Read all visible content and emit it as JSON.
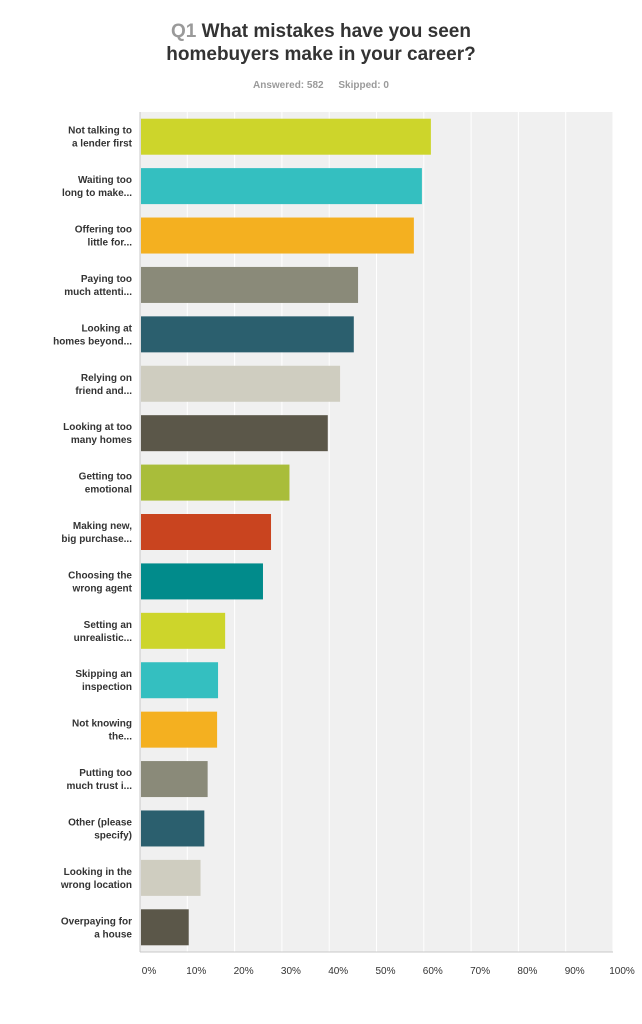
{
  "header": {
    "question_number": "Q1",
    "question_text_line1": "What mistakes have you seen",
    "question_text_line2": "homebuyers make in your career?",
    "answered": "Answered: 582",
    "skipped": "Skipped: 0"
  },
  "chart_data": {
    "type": "bar",
    "orientation": "horizontal",
    "categories": [
      [
        "Not talking to",
        "a lender first"
      ],
      [
        "Waiting too",
        "long to make..."
      ],
      [
        "Offering too",
        "little for..."
      ],
      [
        "Paying too",
        "much attenti..."
      ],
      [
        "Looking at",
        "homes beyond..."
      ],
      [
        "Relying on",
        "friend and..."
      ],
      [
        "Looking at too",
        "many homes"
      ],
      [
        "Getting too",
        "emotional"
      ],
      [
        "Making new,",
        "big purchase..."
      ],
      [
        "Choosing the",
        "wrong agent"
      ],
      [
        "Setting an",
        "unrealistic..."
      ],
      [
        "Skipping an",
        "inspection"
      ],
      [
        "Not knowing",
        "the..."
      ],
      [
        "Putting too",
        "much trust i..."
      ],
      [
        "Other (please",
        "specify)"
      ],
      [
        "Looking in the",
        "wrong location"
      ],
      [
        "Overpaying for",
        "a house"
      ]
    ],
    "values": [
      61.5,
      59.6,
      57.9,
      46.1,
      45.2,
      42.3,
      39.7,
      31.6,
      27.7,
      26.0,
      18.0,
      16.5,
      16.3,
      14.3,
      13.6,
      12.8,
      10.3
    ],
    "colors": [
      "#cdd52b",
      "#34bfc0",
      "#f4b020",
      "#8a8a79",
      "#2b5f6e",
      "#cfcdc0",
      "#5b5749",
      "#a9bd3a",
      "#c9441f",
      "#018b8b",
      "#cdd52b",
      "#34bfc0",
      "#f4b020",
      "#8a8a79",
      "#2b5f6e",
      "#cfcdc0",
      "#5b5749"
    ],
    "x_ticks": [
      "0%",
      "10%",
      "20%",
      "30%",
      "40%",
      "50%",
      "60%",
      "70%",
      "80%",
      "90%",
      "100%"
    ],
    "xlim": [
      0,
      100
    ],
    "grid": true,
    "plot_background": "#f0f0f0",
    "grid_color": "#ffffff"
  }
}
